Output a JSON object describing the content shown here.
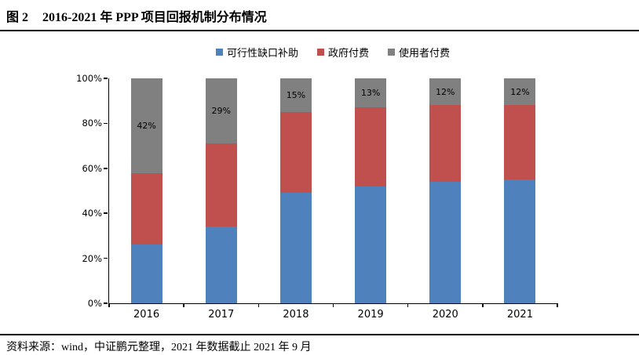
{
  "header": {
    "figure_label": "图 2",
    "title": "2016-2021 年 PPP 项目回报机制分布情况"
  },
  "footer": {
    "source": "资料来源：wind，中证鹏元整理，2021 年数据截止 2021 年 9 月"
  },
  "chart_data": {
    "type": "bar",
    "stacked": true,
    "title": "2016-2021 年 PPP 项目回报机制分布情况",
    "categories": [
      "2016",
      "2017",
      "2018",
      "2019",
      "2020",
      "2021"
    ],
    "series": [
      {
        "name": "可行性缺口补助",
        "color": "#4F81BD",
        "values": [
          26,
          34,
          49,
          52,
          54,
          55
        ]
      },
      {
        "name": "政府付费",
        "color": "#C0504D",
        "values": [
          32,
          37,
          36,
          35,
          34,
          33
        ]
      },
      {
        "name": "使用者付费",
        "color": "#808080",
        "values": [
          42,
          29,
          15,
          13,
          12,
          12
        ],
        "labels": [
          "42%",
          "29%",
          "15%",
          "13%",
          "12%",
          "12%"
        ]
      }
    ],
    "xlabel": "",
    "ylabel": "",
    "ylim": [
      0,
      100
    ],
    "yticks": [
      "0%",
      "20%",
      "40%",
      "60%",
      "80%",
      "100%"
    ],
    "grid": false,
    "legend_position": "top"
  }
}
